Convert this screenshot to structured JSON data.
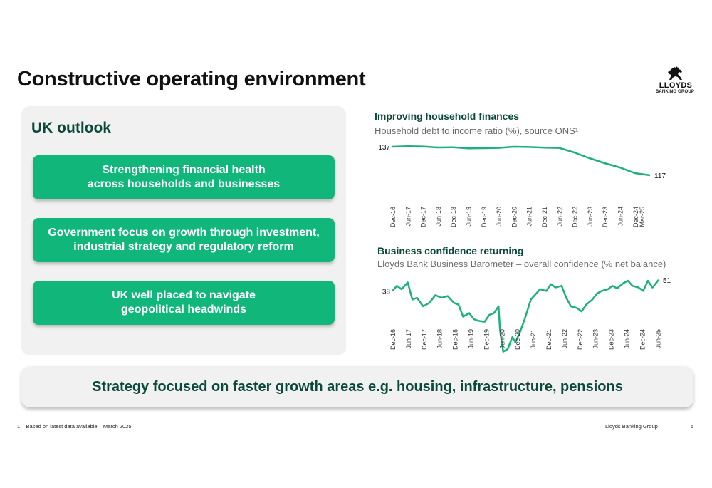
{
  "slide": {
    "title": "Constructive operating environment",
    "logo": {
      "name": "LLOYDS",
      "subtitle": "BANKING GROUP"
    },
    "outlook": {
      "heading": "UK outlook",
      "points": [
        "Strengthening financial health\nacross households and businesses",
        "Government focus on growth through investment,\nindustrial strategy and regulatory reform",
        "UK well placed to navigate\ngeopolitical headwinds"
      ]
    },
    "strategy": "Strategy focused on faster growth areas e.g. housing, infrastructure, pensions",
    "footnote": "1 – Based on latest data available – March 2025.",
    "footer_brand": "Lloyds Banking Group",
    "page_number": "5"
  },
  "colors": {
    "accent": "#11b67a",
    "heading": "#0b4a3a",
    "panel": "#f1f1f1",
    "line": "#1db07a"
  },
  "chart_data": [
    {
      "type": "line",
      "title": "Improving household finances",
      "subtitle": "Household debt to income ratio (%), source ONS¹",
      "x_ticks": [
        "Dec-16",
        "Jun-17",
        "Dec-17",
        "Jun-18",
        "Dec-18",
        "Jun-19",
        "Dec-19",
        "Jun-20",
        "Dec-20",
        "Jun-21",
        "Dec-21",
        "Jun-22",
        "Dec-22",
        "Jun-23",
        "Dec-23",
        "Jun-24",
        "Dec-24",
        "Mar-25"
      ],
      "ylim": [
        100,
        140
      ],
      "start_label": "137",
      "end_label": "117",
      "series": [
        {
          "values": [
            {
              "x": 0,
              "y": 137.0
            },
            {
              "x": 1,
              "y": 137.4
            },
            {
              "x": 2,
              "y": 137.2
            },
            {
              "x": 3,
              "y": 136.5
            },
            {
              "x": 4,
              "y": 136.6
            },
            {
              "x": 5,
              "y": 135.9
            },
            {
              "x": 6,
              "y": 136.0
            },
            {
              "x": 7,
              "y": 136.2
            },
            {
              "x": 8,
              "y": 137.0
            },
            {
              "x": 9,
              "y": 136.8
            },
            {
              "x": 10,
              "y": 136.4
            },
            {
              "x": 11,
              "y": 136.2
            },
            {
              "x": 12,
              "y": 133.0
            },
            {
              "x": 13,
              "y": 129.0
            },
            {
              "x": 14,
              "y": 125.5
            },
            {
              "x": 15,
              "y": 122.5
            },
            {
              "x": 16,
              "y": 118.5
            },
            {
              "x": 17,
              "y": 117.0
            }
          ]
        }
      ]
    },
    {
      "type": "line",
      "title": "Business confidence returning",
      "subtitle": "Lloyds Bank Business Barometer – overall confidence (% net balance)",
      "x_ticks": [
        "Dec-16",
        "Jun-17",
        "Dec-17",
        "Jun-18",
        "Dec-18",
        "Jun-19",
        "Dec-19",
        "Jun-20",
        "Dec-20",
        "Jun-21",
        "Dec-21",
        "Jun-22",
        "Dec-22",
        "Jun-23",
        "Dec-23",
        "Jun-24",
        "Dec-24",
        "Jun-25"
      ],
      "ylim": [
        -35,
        55
      ],
      "start_label": "38",
      "end_label": "51",
      "series": [
        {
          "values": [
            {
              "x": 0,
              "y": 38
            },
            {
              "x": 0.3,
              "y": 44
            },
            {
              "x": 0.6,
              "y": 40
            },
            {
              "x": 1.0,
              "y": 48
            },
            {
              "x": 1.3,
              "y": 28
            },
            {
              "x": 1.6,
              "y": 30
            },
            {
              "x": 2.0,
              "y": 20
            },
            {
              "x": 2.4,
              "y": 24
            },
            {
              "x": 2.8,
              "y": 33
            },
            {
              "x": 3.2,
              "y": 30
            },
            {
              "x": 3.6,
              "y": 32
            },
            {
              "x": 4.0,
              "y": 24
            },
            {
              "x": 4.3,
              "y": 22
            },
            {
              "x": 4.6,
              "y": 8
            },
            {
              "x": 5.0,
              "y": 12
            },
            {
              "x": 5.3,
              "y": 5
            },
            {
              "x": 5.6,
              "y": 3
            },
            {
              "x": 6.0,
              "y": 2
            },
            {
              "x": 6.3,
              "y": 10
            },
            {
              "x": 6.6,
              "y": 12
            },
            {
              "x": 6.9,
              "y": 20
            },
            {
              "x": 7.0,
              "y": -8
            },
            {
              "x": 7.2,
              "y": -33
            },
            {
              "x": 7.5,
              "y": -30
            },
            {
              "x": 7.8,
              "y": -16
            },
            {
              "x": 8.0,
              "y": -22
            },
            {
              "x": 8.3,
              "y": -10
            },
            {
              "x": 8.6,
              "y": 5
            },
            {
              "x": 9.0,
              "y": 28
            },
            {
              "x": 9.3,
              "y": 34
            },
            {
              "x": 9.6,
              "y": 40
            },
            {
              "x": 10.0,
              "y": 38
            },
            {
              "x": 10.3,
              "y": 46
            },
            {
              "x": 10.6,
              "y": 42
            },
            {
              "x": 11.0,
              "y": 44
            },
            {
              "x": 11.3,
              "y": 30
            },
            {
              "x": 11.6,
              "y": 20
            },
            {
              "x": 12.0,
              "y": 18
            },
            {
              "x": 12.3,
              "y": 14
            },
            {
              "x": 12.6,
              "y": 22
            },
            {
              "x": 13.0,
              "y": 28
            },
            {
              "x": 13.3,
              "y": 35
            },
            {
              "x": 13.6,
              "y": 38
            },
            {
              "x": 14.0,
              "y": 40
            },
            {
              "x": 14.3,
              "y": 44
            },
            {
              "x": 14.6,
              "y": 41
            },
            {
              "x": 15.0,
              "y": 47
            },
            {
              "x": 15.3,
              "y": 50
            },
            {
              "x": 15.6,
              "y": 44
            },
            {
              "x": 16.0,
              "y": 42
            },
            {
              "x": 16.3,
              "y": 38
            },
            {
              "x": 16.6,
              "y": 50
            },
            {
              "x": 16.9,
              "y": 42
            },
            {
              "x": 17.3,
              "y": 51
            }
          ]
        }
      ]
    }
  ]
}
